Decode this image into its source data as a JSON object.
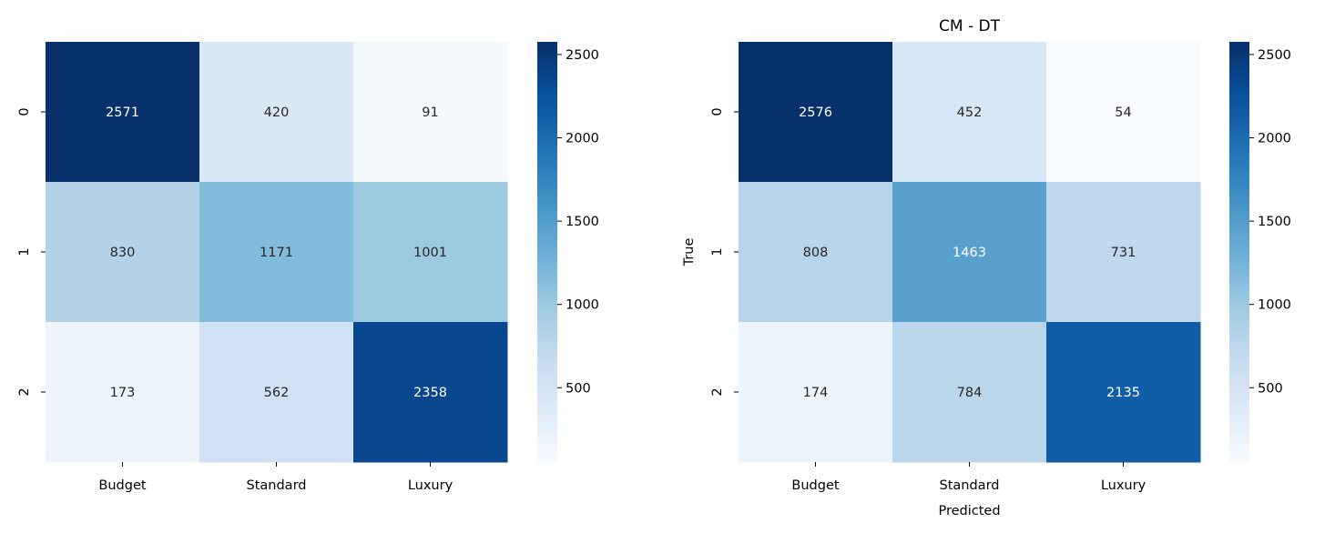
{
  "chart_data": [
    {
      "type": "heatmap",
      "title": "",
      "xlabel": "",
      "ylabel": "",
      "x_categories": [
        "Budget",
        "Standard",
        "Luxury"
      ],
      "y_categories": [
        "0",
        "1",
        "2"
      ],
      "values": [
        [
          2571,
          420,
          91
        ],
        [
          830,
          1171,
          1001
        ],
        [
          173,
          562,
          2358
        ]
      ],
      "colorbar": {
        "range": [
          54,
          2576
        ],
        "ticks": [
          500,
          1000,
          1500,
          2000,
          2500
        ],
        "colormap": "Blues"
      }
    },
    {
      "type": "heatmap",
      "title": "CM - DT",
      "xlabel": "Predicted",
      "ylabel": "True",
      "x_categories": [
        "Budget",
        "Standard",
        "Luxury"
      ],
      "y_categories": [
        "0",
        "1",
        "2"
      ],
      "values": [
        [
          2576,
          452,
          54
        ],
        [
          808,
          1463,
          731
        ],
        [
          174,
          784,
          2135
        ]
      ],
      "colorbar": {
        "range": [
          54,
          2576
        ],
        "ticks": [
          500,
          1000,
          1500,
          2000,
          2500
        ],
        "colormap": "Blues"
      }
    }
  ]
}
